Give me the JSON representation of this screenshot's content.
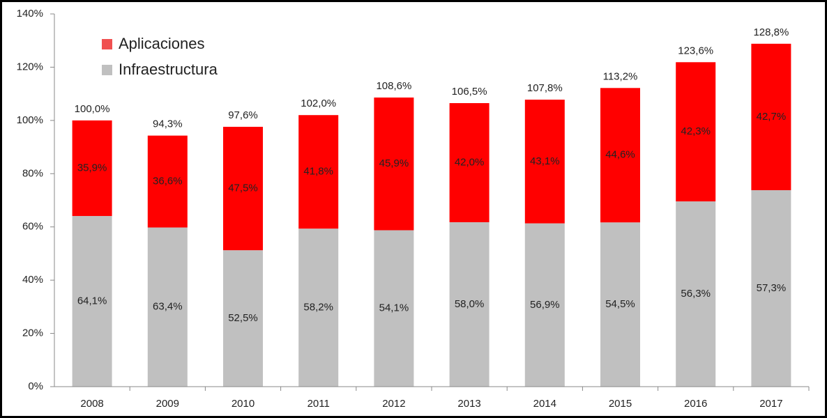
{
  "chart_data": {
    "type": "bar",
    "categories": [
      "2008",
      "2009",
      "2010",
      "2011",
      "2012",
      "2013",
      "2014",
      "2015",
      "2016",
      "2017"
    ],
    "totals": [
      100.0,
      94.3,
      97.6,
      102.0,
      108.6,
      106.5,
      107.8,
      113.2,
      123.6,
      128.8
    ],
    "totals_labels": [
      "100,0%",
      "94,3%",
      "97,6%",
      "102,0%",
      "108,6%",
      "106,5%",
      "107,8%",
      "113,2%",
      "123,6%",
      "128,8%"
    ],
    "series": [
      {
        "name": "Infraestructura",
        "color": "#c0c0c0",
        "values": [
          64.1,
          63.4,
          52.5,
          58.2,
          54.1,
          58.0,
          56.9,
          54.5,
          56.3,
          57.3
        ],
        "value_labels": [
          "64,1%",
          "63,4%",
          "52,5%",
          "58,2%",
          "54,1%",
          "58,0%",
          "56,9%",
          "54,5%",
          "56,3%",
          "57,3%"
        ]
      },
      {
        "name": "Aplicaciones",
        "color": "#ff0000",
        "legend_color": "#f05050",
        "values": [
          35.9,
          36.6,
          47.5,
          41.8,
          45.9,
          42.0,
          43.1,
          44.6,
          42.3,
          42.7
        ],
        "value_labels": [
          "35,9%",
          "36,6%",
          "47,5%",
          "41,8%",
          "45,9%",
          "42,0%",
          "43,1%",
          "44,6%",
          "42,3%",
          "42,7%"
        ]
      }
    ],
    "ylim": [
      0,
      140
    ],
    "yticks": [
      {
        "value": 0,
        "label": "0%"
      },
      {
        "value": 20,
        "label": "20%"
      },
      {
        "value": 40,
        "label": "40%"
      },
      {
        "value": 60,
        "label": "60%"
      },
      {
        "value": 80,
        "label": "80%"
      },
      {
        "value": 100,
        "label": "100%"
      },
      {
        "value": 120,
        "label": "120%"
      },
      {
        "value": 140,
        "label": "140%"
      }
    ],
    "legend": "upper left"
  }
}
